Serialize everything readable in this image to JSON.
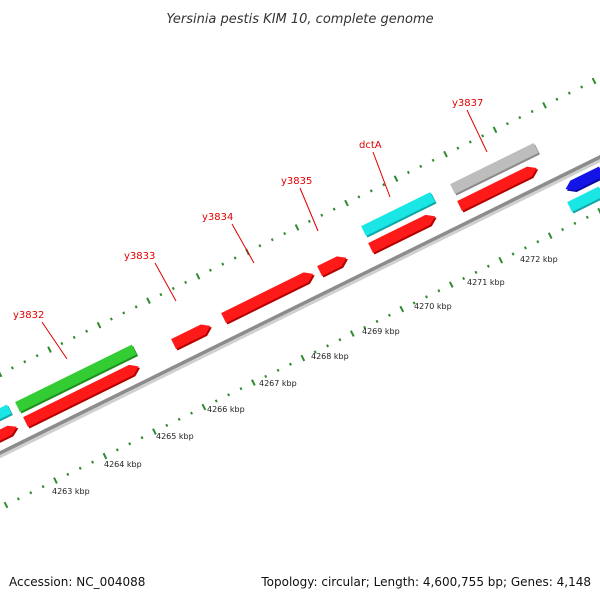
{
  "title": "Yersinia pestis KIM 10, complete genome",
  "footer": {
    "accession": "Accession: NC_004088",
    "summary": "Topology: circular; Length: 4,600,755 bp; Genes: 4,148"
  },
  "colors": {
    "backbone": "#8c8c8c",
    "tick": "#2e8b2e",
    "label": "#e00000",
    "red_gene": "#ff1a1a",
    "green_gene": "#33cc33",
    "cyan_gene": "#1ae6e6",
    "gray_gene": "#bdbdbd",
    "blue_gene": "#1414e6"
  },
  "kbp_scale": {
    "unit": "kbp",
    "labels": [
      "4263 kbp",
      "4264 kbp",
      "4265 kbp",
      "4266 kbp",
      "4267 kbp",
      "4268 kbp",
      "4269 kbp",
      "4270 kbp",
      "4271 kbp",
      "4272 kbp"
    ]
  },
  "gene_labels": [
    "y3832",
    "y3833",
    "y3834",
    "y3835",
    "dctA",
    "y3837"
  ],
  "features": {
    "outer_track": [
      {
        "color": "cyan"
      },
      {
        "color": "green",
        "label": "y3832"
      },
      {
        "color": "cyan",
        "label": "dctA"
      },
      {
        "color": "gray",
        "label": "y3837"
      },
      {
        "color": "blue"
      },
      {
        "color": "cyan"
      }
    ],
    "inner_track": [
      {
        "color": "red"
      },
      {
        "color": "red"
      },
      {
        "color": "red",
        "label": "y3833"
      },
      {
        "color": "red",
        "label": "y3834"
      },
      {
        "color": "red",
        "label": "y3835"
      },
      {
        "color": "red"
      },
      {
        "color": "red"
      }
    ]
  }
}
